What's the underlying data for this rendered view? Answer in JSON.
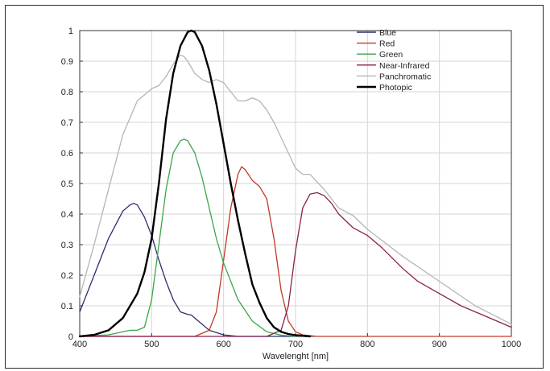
{
  "chart_data": {
    "type": "line",
    "title": "",
    "xlabel": "Wavelenght [nm]",
    "ylabel": "",
    "xlim": [
      400,
      1000
    ],
    "ylim": [
      0,
      1
    ],
    "grid": true,
    "legend_placement": "top-right",
    "x_ticks": [
      "400",
      "500",
      "600",
      "700",
      "800",
      "900",
      "1000"
    ],
    "y_ticks": [
      "0",
      "0.1",
      "0.2",
      "0.3",
      "0.4",
      "0.5",
      "0.6",
      "0.7",
      "0.8",
      "0.9",
      "1"
    ],
    "series": [
      {
        "name": "Blue",
        "color": "#2e2e6e",
        "x": [
          400,
          420,
          440,
          460,
          470,
          475,
          480,
          490,
          500,
          510,
          520,
          530,
          540,
          550,
          555,
          560,
          570,
          580,
          600,
          620,
          650,
          700
        ],
        "y": [
          0.08,
          0.2,
          0.32,
          0.41,
          0.43,
          0.435,
          0.43,
          0.39,
          0.33,
          0.25,
          0.18,
          0.12,
          0.08,
          0.072,
          0.07,
          0.06,
          0.04,
          0.02,
          0.005,
          0.0,
          0.0,
          0.0
        ]
      },
      {
        "name": "Red",
        "color": "#c0392b",
        "x": [
          400,
          560,
          580,
          590,
          600,
          610,
          620,
          625,
          630,
          640,
          650,
          660,
          670,
          680,
          690,
          700,
          710,
          730,
          1000
        ],
        "y": [
          0.0,
          0.0,
          0.02,
          0.08,
          0.25,
          0.42,
          0.53,
          0.555,
          0.545,
          0.51,
          0.49,
          0.45,
          0.32,
          0.15,
          0.05,
          0.015,
          0.005,
          0.0,
          0.0
        ]
      },
      {
        "name": "Green",
        "color": "#3aa64a",
        "x": [
          400,
          440,
          460,
          470,
          480,
          490,
          500,
          510,
          520,
          530,
          540,
          545,
          550,
          560,
          570,
          580,
          590,
          600,
          620,
          640,
          660,
          680,
          700
        ],
        "y": [
          0.0,
          0.005,
          0.015,
          0.02,
          0.02,
          0.03,
          0.12,
          0.3,
          0.48,
          0.6,
          0.64,
          0.645,
          0.64,
          0.6,
          0.52,
          0.42,
          0.32,
          0.24,
          0.12,
          0.05,
          0.015,
          0.004,
          0.0
        ]
      },
      {
        "name": "Near-Infrared",
        "color": "#8a2050",
        "x": [
          400,
          660,
          680,
          690,
          700,
          710,
          720,
          730,
          740,
          750,
          760,
          780,
          800,
          820,
          850,
          870,
          900,
          930,
          960,
          1000
        ],
        "y": [
          0.0,
          0.0,
          0.02,
          0.1,
          0.28,
          0.42,
          0.465,
          0.47,
          0.46,
          0.435,
          0.4,
          0.355,
          0.33,
          0.29,
          0.22,
          0.18,
          0.14,
          0.1,
          0.07,
          0.03
        ]
      },
      {
        "name": "Panchromatic",
        "color": "#b5b5b5",
        "x": [
          400,
          420,
          440,
          460,
          480,
          500,
          510,
          520,
          530,
          540,
          545,
          550,
          560,
          570,
          580,
          590,
          600,
          610,
          620,
          630,
          640,
          650,
          660,
          670,
          680,
          690,
          700,
          710,
          720,
          740,
          760,
          780,
          800,
          850,
          900,
          950,
          1000
        ],
        "y": [
          0.13,
          0.3,
          0.48,
          0.66,
          0.77,
          0.81,
          0.82,
          0.85,
          0.89,
          0.92,
          0.915,
          0.9,
          0.86,
          0.84,
          0.83,
          0.84,
          0.83,
          0.8,
          0.77,
          0.77,
          0.78,
          0.77,
          0.74,
          0.7,
          0.65,
          0.6,
          0.55,
          0.53,
          0.53,
          0.48,
          0.42,
          0.395,
          0.35,
          0.26,
          0.18,
          0.1,
          0.04
        ]
      },
      {
        "name": "Photopic",
        "color": "#000000",
        "x": [
          400,
          420,
          440,
          460,
          480,
          490,
          500,
          510,
          520,
          530,
          540,
          550,
          555,
          560,
          570,
          580,
          590,
          600,
          610,
          620,
          630,
          640,
          650,
          660,
          670,
          680,
          690,
          700,
          720
        ],
        "y": [
          0.0,
          0.005,
          0.02,
          0.06,
          0.14,
          0.21,
          0.32,
          0.5,
          0.71,
          0.86,
          0.95,
          0.995,
          1.0,
          0.995,
          0.95,
          0.87,
          0.76,
          0.63,
          0.5,
          0.38,
          0.27,
          0.17,
          0.11,
          0.06,
          0.03,
          0.015,
          0.008,
          0.004,
          0.0
        ]
      }
    ]
  }
}
